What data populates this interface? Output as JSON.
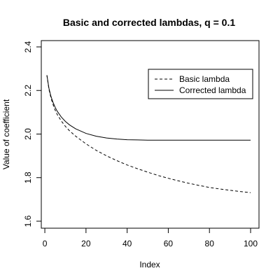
{
  "chart_data": {
    "type": "line",
    "title": "Basic and corrected lambdas, q = 0.1",
    "xlabel": "Index",
    "ylabel": "Value of coefficient",
    "xlim": [
      1,
      100
    ],
    "ylim": [
      1.6,
      2.4
    ],
    "x_ticks": [
      0,
      20,
      40,
      60,
      80,
      100
    ],
    "y_ticks": [
      1.6,
      1.8,
      2.0,
      2.2,
      2.4
    ],
    "legend_position": "top-right",
    "x": [
      1,
      2,
      3,
      4,
      5,
      6,
      8,
      10,
      12,
      15,
      20,
      25,
      30,
      35,
      40,
      45,
      50,
      55,
      60,
      65,
      70,
      75,
      80,
      85,
      90,
      95,
      100
    ],
    "series": [
      {
        "name": "Basic lambda",
        "line_style": "dashed",
        "values": [
          2.27,
          2.205,
          2.165,
          2.135,
          2.11,
          2.09,
          2.06,
          2.035,
          2.015,
          1.99,
          1.955,
          1.925,
          1.9,
          1.878,
          1.858,
          1.841,
          1.825,
          1.81,
          1.797,
          1.785,
          1.774,
          1.764,
          1.755,
          1.748,
          1.742,
          1.736,
          1.731
        ]
      },
      {
        "name": "Corrected lambda",
        "line_style": "solid",
        "values": [
          2.27,
          2.21,
          2.172,
          2.145,
          2.123,
          2.105,
          2.078,
          2.058,
          2.042,
          2.024,
          2.003,
          1.99,
          1.982,
          1.977,
          1.974,
          1.973,
          1.972,
          1.972,
          1.972,
          1.972,
          1.972,
          1.972,
          1.972,
          1.972,
          1.972,
          1.972,
          1.972
        ]
      }
    ]
  }
}
